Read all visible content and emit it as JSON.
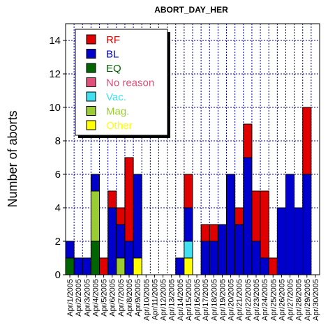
{
  "chart_data": {
    "type": "bar",
    "stacked": true,
    "title": "ABORT_DAY_HER",
    "xlabel": "",
    "ylabel": "Number of aborts",
    "ylim": [
      0,
      15
    ],
    "yticks": [
      0,
      2,
      4,
      6,
      8,
      10,
      12,
      14
    ],
    "grid": true,
    "legend_position": "top-left",
    "categories": [
      "Apr/1/2005",
      "Apr/2/2005",
      "Apr/3/2005",
      "Apr/4/2005",
      "Apr/5/2005",
      "Apr/6/2005",
      "Apr/7/2005",
      "Apr/8/2005",
      "Apr/9/2005",
      "Apr/10/2005",
      "Apr/11/2005",
      "Apr/12/2005",
      "Apr/13/2005",
      "Apr/14/2005",
      "Apr/15/2005",
      "Apr/16/2005",
      "Apr/17/2005",
      "Apr/18/2005",
      "Apr/19/2005",
      "Apr/20/2005",
      "Apr/21/2005",
      "Apr/22/2005",
      "Apr/23/2005",
      "Apr/24/2005",
      "Apr/25/2005",
      "Apr/26/2005",
      "Apr/27/2005",
      "Apr/28/2005",
      "Apr/29/2005",
      "Apr/30/2005"
    ],
    "series": [
      {
        "name": "EQ",
        "color": "#006400",
        "values": [
          1,
          0,
          0,
          2,
          0,
          0,
          0,
          0,
          0,
          0,
          0,
          0,
          0,
          0,
          0,
          0,
          0,
          0,
          0,
          0,
          0,
          0,
          0,
          0,
          0,
          0,
          0,
          0,
          0,
          0
        ]
      },
      {
        "name": "Mag.",
        "color": "#9ACD32",
        "values": [
          0,
          0,
          0,
          3,
          0,
          0,
          1,
          0,
          0,
          0,
          0,
          0,
          0,
          0,
          0,
          0,
          0,
          0,
          0,
          0,
          0,
          0,
          0,
          0,
          0,
          0,
          0,
          0,
          0,
          0
        ]
      },
      {
        "name": "Other",
        "color": "#FFFF00",
        "values": [
          0,
          0,
          0,
          0,
          0,
          0,
          0,
          0,
          1,
          0,
          0,
          0,
          0,
          0,
          1,
          0,
          0,
          0,
          0,
          0,
          0,
          0,
          0,
          0,
          0,
          0,
          0,
          0,
          0,
          0
        ]
      },
      {
        "name": "Vac.",
        "color": "#40E0F0",
        "values": [
          0,
          0,
          0,
          0,
          0,
          0,
          0,
          0,
          0,
          0,
          0,
          0,
          0,
          0,
          1,
          0,
          0,
          0,
          0,
          0,
          0,
          0,
          0,
          0,
          0,
          0,
          0,
          0,
          0,
          0
        ]
      },
      {
        "name": "BL",
        "color": "#0000CD",
        "values": [
          1,
          1,
          1,
          1,
          0,
          4,
          2,
          2,
          5,
          0,
          0,
          0,
          0,
          1,
          2,
          0,
          2,
          2,
          3,
          6,
          3,
          7,
          2,
          1,
          0,
          4,
          6,
          4,
          6,
          0
        ]
      },
      {
        "name": "RF",
        "color": "#E00000",
        "values": [
          0,
          0,
          0,
          0,
          1,
          1,
          1,
          5,
          0,
          0,
          0,
          0,
          0,
          0,
          2,
          0,
          1,
          1,
          0,
          0,
          1,
          2,
          3,
          4,
          1,
          0,
          0,
          0,
          4,
          0
        ]
      },
      {
        "name": "No reason",
        "color": "#E0507A",
        "values": [
          0,
          0,
          0,
          0,
          0,
          0,
          0,
          0,
          0,
          0,
          0,
          0,
          0,
          0,
          0,
          0,
          0,
          0,
          0,
          0,
          0,
          0,
          0,
          0,
          0,
          0,
          0,
          0,
          0,
          0
        ]
      }
    ],
    "legend": [
      {
        "label": "RF",
        "color": "#E00000",
        "text_color": "#E00000"
      },
      {
        "label": "BL",
        "color": "#0000CD",
        "text_color": "#0000CD"
      },
      {
        "label": "EQ",
        "color": "#006400",
        "text_color": "#006400"
      },
      {
        "label": "No reason",
        "color": "#E0507A",
        "text_color": "#E0507A"
      },
      {
        "label": "Vac.",
        "color": "#40E0F0",
        "text_color": "#40E0F0"
      },
      {
        "label": "Mag.",
        "color": "#9ACD32",
        "text_color": "#9ACD32"
      },
      {
        "label": "Other",
        "color": "#FFFF00",
        "text_color": "#FFFF00"
      }
    ]
  }
}
